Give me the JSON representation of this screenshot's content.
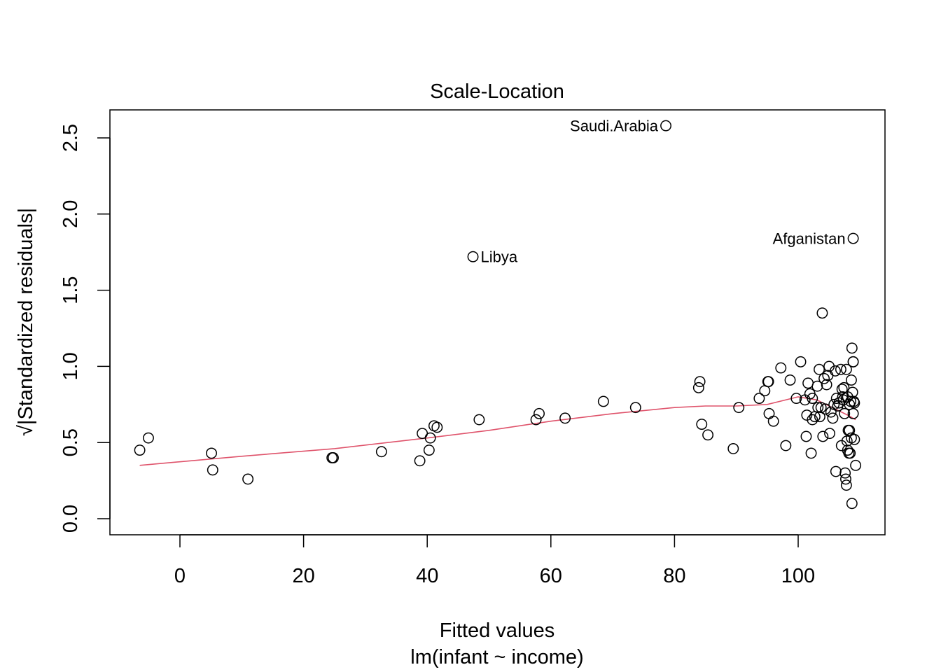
{
  "chart_data": {
    "type": "scatter",
    "title": "Scale-Location",
    "xlabel": "Fitted values",
    "sublabel": "lm(infant ~ income)",
    "ylabel": "√|Standardized residuals|",
    "xlim": [
      -10,
      115
    ],
    "ylim": [
      -0.1,
      2.7
    ],
    "xticks": [
      0,
      20,
      40,
      60,
      80,
      100
    ],
    "yticks": [
      "0.0",
      "0.5",
      "1.0",
      "1.5",
      "2.0",
      "2.5"
    ],
    "grid": false,
    "point_color": "#000000",
    "smooth_color": "#DF536B",
    "points": [
      [
        -6.5,
        0.45
      ],
      [
        -5.1,
        0.53
      ],
      [
        5.1,
        0.43
      ],
      [
        5.3,
        0.32
      ],
      [
        11.0,
        0.26
      ],
      [
        24.6,
        0.4
      ],
      [
        24.8,
        0.4
      ],
      [
        32.6,
        0.44
      ],
      [
        38.8,
        0.38
      ],
      [
        39.2,
        0.56
      ],
      [
        40.3,
        0.45
      ],
      [
        40.5,
        0.53
      ],
      [
        41.1,
        0.61
      ],
      [
        41.6,
        0.6
      ],
      [
        47.4,
        1.72
      ],
      [
        48.4,
        0.65
      ],
      [
        57.6,
        0.65
      ],
      [
        58.1,
        0.69
      ],
      [
        62.3,
        0.66
      ],
      [
        68.5,
        0.77
      ],
      [
        73.7,
        0.73
      ],
      [
        78.6,
        2.58
      ],
      [
        83.9,
        0.86
      ],
      [
        84.1,
        0.9
      ],
      [
        84.4,
        0.62
      ],
      [
        85.4,
        0.55
      ],
      [
        89.5,
        0.46
      ],
      [
        90.4,
        0.73
      ],
      [
        93.7,
        0.79
      ],
      [
        94.6,
        0.84
      ],
      [
        95.1,
        0.9
      ],
      [
        95.2,
        0.9
      ],
      [
        95.3,
        0.69
      ],
      [
        96.0,
        0.64
      ],
      [
        97.2,
        0.99
      ],
      [
        98.0,
        0.48
      ],
      [
        98.7,
        0.91
      ],
      [
        99.7,
        0.79
      ],
      [
        100.4,
        1.03
      ],
      [
        101.1,
        0.78
      ],
      [
        101.3,
        0.54
      ],
      [
        101.4,
        0.68
      ],
      [
        101.6,
        0.89
      ],
      [
        101.9,
        0.82
      ],
      [
        102.1,
        0.43
      ],
      [
        102.3,
        0.65
      ],
      [
        102.3,
        0.79
      ],
      [
        102.7,
        0.67
      ],
      [
        103.1,
        0.87
      ],
      [
        103.2,
        0.73
      ],
      [
        103.4,
        0.98
      ],
      [
        103.5,
        0.67
      ],
      [
        103.7,
        0.73
      ],
      [
        103.9,
        1.35
      ],
      [
        104.0,
        0.54
      ],
      [
        104.2,
        0.92
      ],
      [
        104.4,
        0.72
      ],
      [
        104.6,
        0.88
      ],
      [
        104.8,
        0.94
      ],
      [
        105.0,
        1.0
      ],
      [
        105.1,
        0.56
      ],
      [
        105.3,
        0.7
      ],
      [
        105.6,
        0.66
      ],
      [
        105.8,
        0.75
      ],
      [
        106.0,
        0.97
      ],
      [
        106.1,
        0.31
      ],
      [
        106.2,
        0.79
      ],
      [
        106.4,
        0.74
      ],
      [
        106.6,
        0.76
      ],
      [
        106.9,
        0.98
      ],
      [
        107.0,
        0.48
      ],
      [
        107.1,
        0.85
      ],
      [
        107.2,
        0.8
      ],
      [
        107.3,
        0.78
      ],
      [
        107.4,
        0.86
      ],
      [
        107.5,
        0.69
      ],
      [
        107.6,
        0.3
      ],
      [
        107.7,
        0.26
      ],
      [
        107.8,
        0.98
      ],
      [
        107.8,
        0.22
      ],
      [
        107.9,
        0.51
      ],
      [
        108.0,
        0.8
      ],
      [
        108.0,
        0.45
      ],
      [
        108.1,
        0.58
      ],
      [
        108.2,
        0.43
      ],
      [
        108.3,
        0.75
      ],
      [
        108.3,
        0.58
      ],
      [
        108.4,
        0.43
      ],
      [
        108.5,
        0.77
      ],
      [
        108.6,
        0.91
      ],
      [
        108.6,
        0.53
      ],
      [
        108.7,
        1.12
      ],
      [
        108.7,
        0.1
      ],
      [
        108.8,
        0.83
      ],
      [
        108.9,
        1.03
      ],
      [
        108.9,
        1.03
      ],
      [
        108.9,
        0.69
      ],
      [
        108.9,
        1.84
      ],
      [
        109.0,
        0.77
      ],
      [
        109.1,
        0.76
      ],
      [
        109.1,
        0.52
      ],
      [
        109.3,
        0.35
      ]
    ],
    "smooth": [
      [
        -6.5,
        0.35
      ],
      [
        10,
        0.41
      ],
      [
        25,
        0.46
      ],
      [
        40,
        0.53
      ],
      [
        50,
        0.58
      ],
      [
        60,
        0.64
      ],
      [
        70,
        0.69
      ],
      [
        80,
        0.73
      ],
      [
        85,
        0.74
      ],
      [
        90,
        0.74
      ],
      [
        95,
        0.75
      ],
      [
        100,
        0.8
      ],
      [
        103,
        0.78
      ],
      [
        106,
        0.72
      ],
      [
        108,
        0.68
      ],
      [
        109.3,
        0.65
      ]
    ],
    "annotations": [
      {
        "label": "Saudi.Arabia",
        "x": 78.6,
        "y": 2.58,
        "side": "left"
      },
      {
        "label": "Afganistan",
        "x": 108.9,
        "y": 1.84,
        "side": "left"
      },
      {
        "label": "Libya",
        "x": 47.4,
        "y": 1.72,
        "side": "right"
      }
    ]
  }
}
